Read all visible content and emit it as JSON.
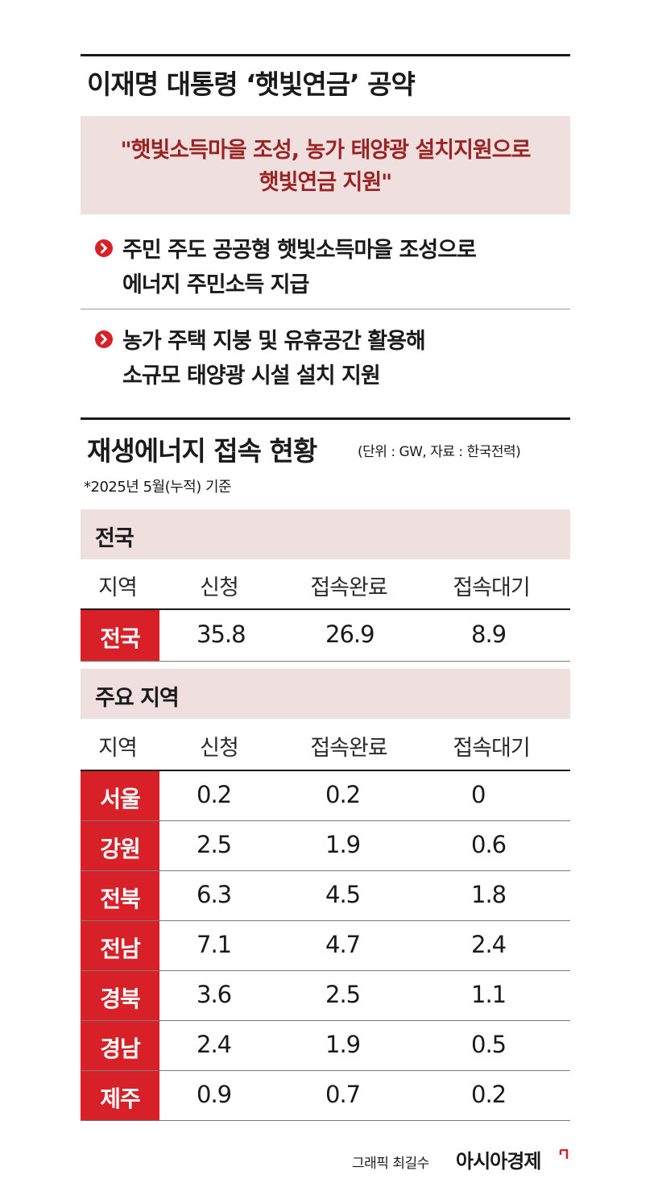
{
  "pledge": {
    "title": "이재명 대통령 ‘햇빛연금’ 공약",
    "quote_line1": "\"햇빛소득마을 조성, 농가 태양광 설치지원으로",
    "quote_line2": "햇빛연금 지원\"",
    "bullets": [
      {
        "line1": "주민 주도 공공형 햇빛소득마을 조성으로",
        "line2": "에너지 주민소득 지급"
      },
      {
        "line1": "농가 주택 지붕 및 유휴공간 활용해",
        "line2": "소규모 태양광 시설 설치 지원"
      }
    ]
  },
  "status": {
    "title": "재생에너지 접속 현황",
    "unit": "(단위 : GW, 자료 : 한국전력)",
    "note": "*2025년 5월(누적) 기준"
  },
  "colors": {
    "accent_red": "#d72027",
    "band_pink": "#efdfdf",
    "quote_text": "#9a2424"
  },
  "icons": {
    "bullet": "chevron-right-circle-icon",
    "brand_mark": "corner-bracket-icon"
  },
  "chart_data": {
    "type": "table",
    "columns": [
      "지역",
      "신청",
      "접속완료",
      "접속대기"
    ],
    "sections": [
      {
        "name": "전국",
        "rows": [
          {
            "region": "전국",
            "values": [
              "35.8",
              "26.9",
              "8.9"
            ]
          }
        ]
      },
      {
        "name": "주요 지역",
        "rows": [
          {
            "region": "서울",
            "values": [
              "0.2",
              "0.2",
              "0"
            ]
          },
          {
            "region": "강원",
            "values": [
              "2.5",
              "1.9",
              "0.6"
            ]
          },
          {
            "region": "전북",
            "values": [
              "6.3",
              "4.5",
              "1.8"
            ]
          },
          {
            "region": "전남",
            "values": [
              "7.1",
              "4.7",
              "2.4"
            ]
          },
          {
            "region": "경북",
            "values": [
              "3.6",
              "2.5",
              "1.1"
            ]
          },
          {
            "region": "경남",
            "values": [
              "2.4",
              "1.9",
              "0.5"
            ]
          },
          {
            "region": "제주",
            "values": [
              "0.9",
              "0.7",
              "0.2"
            ]
          }
        ]
      }
    ]
  },
  "footer": {
    "credit": "그래픽 최길수",
    "brand": "아시아경제"
  }
}
